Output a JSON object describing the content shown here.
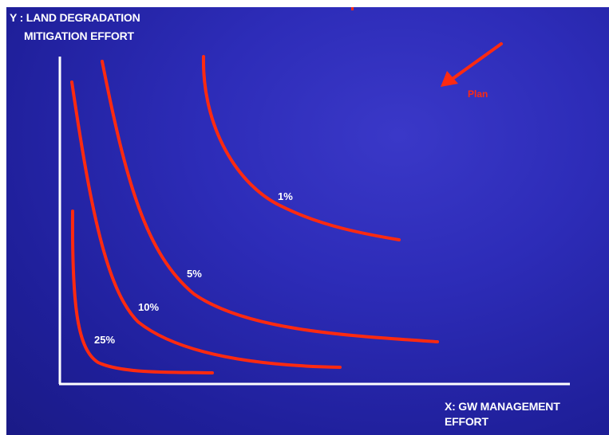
{
  "y_axis": {
    "line1": "Y : LAND DEGRADATION",
    "line2": "MITIGATION EFFORT"
  },
  "x_axis": {
    "line1": "X: GW MANAGEMENT",
    "line2": "EFFORT"
  },
  "arrow_label": "Plan",
  "curves": [
    {
      "label": "1%"
    },
    {
      "label": "5%"
    },
    {
      "label": "10%"
    },
    {
      "label": "25%"
    }
  ],
  "colors": {
    "background": "#2a29b0",
    "curve": "#ff2a10",
    "axis": "#ffffff",
    "text": "#ffffff"
  }
}
